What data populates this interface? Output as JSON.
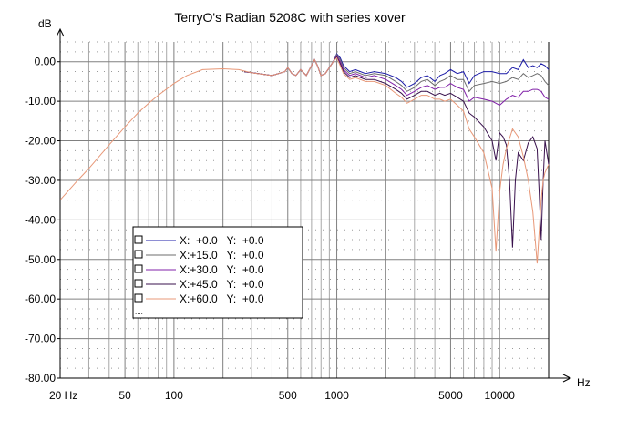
{
  "chart_data": {
    "type": "line",
    "title": "TerryO's Radian 5208C with series xover",
    "ylabel": "dB",
    "xlabel": "Hz",
    "x_scale": "log",
    "xlim": [
      20,
      20000
    ],
    "ylim": [
      -80,
      5
    ],
    "x_ticks": [
      {
        "value": 20,
        "label": "20 Hz"
      },
      {
        "value": 50,
        "label": "50"
      },
      {
        "value": 100,
        "label": "100"
      },
      {
        "value": 500,
        "label": "500"
      },
      {
        "value": 1000,
        "label": "1000"
      },
      {
        "value": 5000,
        "label": "5000"
      },
      {
        "value": 10000,
        "label": "10000"
      }
    ],
    "y_ticks": [
      {
        "value": 0,
        "label": "0.00"
      },
      {
        "value": -10,
        "label": "-10.00"
      },
      {
        "value": -20,
        "label": "-20.00"
      },
      {
        "value": -30,
        "label": "-30.00"
      },
      {
        "value": -40,
        "label": "-40.00"
      },
      {
        "value": -50,
        "label": "-50.00"
      },
      {
        "value": -60,
        "label": "-60.00"
      },
      {
        "value": -70,
        "label": "-70.00"
      },
      {
        "value": -80,
        "label": "-80.00"
      }
    ],
    "grid": true,
    "legend_position": "lower-left",
    "legend_more": "....",
    "series": [
      {
        "name": "X:  +0.0   Y:  +0.0",
        "color": "#1c1ca8",
        "x": [
          270,
          330,
          400,
          480,
          500,
          530,
          560,
          600,
          650,
          700,
          730,
          760,
          800,
          850,
          900,
          950,
          1000,
          1050,
          1100,
          1200,
          1300,
          1500,
          1700,
          2000,
          2300,
          2500,
          2700,
          3000,
          3300,
          3600,
          4000,
          4300,
          4600,
          5000,
          5500,
          6000,
          6500,
          7000,
          8000,
          9000,
          10000,
          11000,
          12000,
          13000,
          14000,
          15000,
          16000,
          17000,
          18000,
          19000,
          20000
        ],
        "y": [
          -2.5,
          -3.0,
          -3.5,
          -2.5,
          -1.5,
          -3.0,
          -3.5,
          -2.0,
          -3.5,
          -1.0,
          0.5,
          -1.0,
          -3.5,
          -3.0,
          -1.5,
          0.0,
          2.0,
          1.0,
          -1.0,
          -2.5,
          -2.0,
          -3.0,
          -2.5,
          -3.0,
          -4.0,
          -5.0,
          -6.5,
          -5.5,
          -4.0,
          -3.5,
          -5.0,
          -3.5,
          -3.0,
          -2.0,
          -3.0,
          -2.5,
          -5.5,
          -3.5,
          -2.5,
          -2.5,
          -3.0,
          -3.0,
          -1.5,
          -2.0,
          0.5,
          -1.5,
          -1.0,
          -1.5,
          -0.5,
          -1.0,
          -2.0
        ]
      },
      {
        "name": "X:+15.0   Y:  +0.0",
        "color": "#6c6c6c",
        "x": [
          270,
          330,
          400,
          480,
          500,
          530,
          560,
          600,
          650,
          700,
          730,
          760,
          800,
          850,
          900,
          950,
          1000,
          1050,
          1100,
          1200,
          1300,
          1500,
          1700,
          2000,
          2300,
          2500,
          2700,
          3000,
          3300,
          3600,
          4000,
          4300,
          4600,
          5000,
          5500,
          6000,
          6500,
          7000,
          8000,
          9000,
          10000,
          11000,
          12000,
          13000,
          14000,
          15000,
          16000,
          17000,
          18000,
          19000,
          20000
        ],
        "y": [
          -2.5,
          -3.0,
          -3.5,
          -2.5,
          -1.5,
          -3.0,
          -3.5,
          -2.0,
          -3.5,
          -1.0,
          0.5,
          -1.0,
          -3.5,
          -3.0,
          -1.5,
          0.0,
          1.8,
          0.5,
          -1.5,
          -3.0,
          -2.5,
          -3.5,
          -3.0,
          -3.5,
          -5.0,
          -6.0,
          -7.5,
          -6.5,
          -5.0,
          -4.5,
          -6.0,
          -5.0,
          -4.5,
          -3.5,
          -4.5,
          -4.5,
          -7.5,
          -6.0,
          -5.5,
          -5.0,
          -5.5,
          -5.0,
          -4.0,
          -4.5,
          -3.0,
          -4.0,
          -3.5,
          -3.0,
          -3.5,
          -5.0,
          -6.0
        ]
      },
      {
        "name": "X:+30.0   Y:  +0.0",
        "color": "#8020a8",
        "x": [
          270,
          330,
          400,
          480,
          500,
          530,
          560,
          600,
          650,
          700,
          730,
          760,
          800,
          850,
          900,
          950,
          1000,
          1050,
          1100,
          1200,
          1300,
          1500,
          1700,
          2000,
          2300,
          2500,
          2700,
          3000,
          3300,
          3600,
          4000,
          4300,
          4600,
          5000,
          5500,
          6000,
          6500,
          7000,
          8000,
          9000,
          10000,
          11000,
          12000,
          13000,
          14000,
          15000,
          16000,
          17000,
          18000,
          19000,
          20000
        ],
        "y": [
          -2.5,
          -3.0,
          -3.5,
          -2.5,
          -1.5,
          -3.0,
          -3.5,
          -2.0,
          -3.5,
          -1.0,
          0.5,
          -1.0,
          -3.5,
          -3.0,
          -1.5,
          0.0,
          1.5,
          0.0,
          -2.0,
          -3.5,
          -3.0,
          -4.0,
          -3.5,
          -4.5,
          -6.0,
          -7.0,
          -8.5,
          -7.5,
          -6.5,
          -6.0,
          -7.0,
          -6.5,
          -6.5,
          -5.5,
          -6.5,
          -7.0,
          -10.0,
          -9.0,
          -9.5,
          -10.0,
          -11.0,
          -9.5,
          -8.5,
          -9.0,
          -7.5,
          -7.5,
          -7.0,
          -7.0,
          -7.5,
          -9.0,
          -9.5
        ]
      },
      {
        "name": "X:+45.0   Y:  +0.0",
        "color": "#38104c",
        "x": [
          270,
          330,
          400,
          480,
          500,
          530,
          560,
          600,
          650,
          700,
          730,
          760,
          800,
          850,
          900,
          950,
          1000,
          1050,
          1100,
          1200,
          1300,
          1500,
          1700,
          2000,
          2300,
          2500,
          2700,
          3000,
          3300,
          3600,
          4000,
          4300,
          4600,
          5000,
          5500,
          6000,
          6500,
          7000,
          8000,
          9000,
          9500,
          10000,
          10500,
          11000,
          11500,
          12000,
          12500,
          13000,
          14000,
          15000,
          16000,
          17000,
          17500,
          18000,
          18500,
          19000,
          20000
        ],
        "y": [
          -2.5,
          -3.0,
          -3.5,
          -2.5,
          -1.5,
          -3.0,
          -3.5,
          -2.0,
          -3.5,
          -1.0,
          0.5,
          -1.0,
          -3.5,
          -3.0,
          -1.5,
          0.0,
          1.2,
          -0.5,
          -2.5,
          -4.0,
          -3.5,
          -4.5,
          -4.5,
          -5.5,
          -7.0,
          -8.0,
          -9.5,
          -8.5,
          -7.5,
          -7.5,
          -8.5,
          -8.0,
          -8.5,
          -8.0,
          -9.0,
          -10.0,
          -13.0,
          -14.0,
          -16.5,
          -20.0,
          -25.0,
          -18.0,
          -19.0,
          -21.0,
          -30.0,
          -47.0,
          -30.0,
          -23.0,
          -25.0,
          -20.5,
          -19.0,
          -22.0,
          -33.0,
          -45.0,
          -30.0,
          -20.0,
          -26.0
        ]
      },
      {
        "name": "X:+60.0   Y:  +0.0",
        "color": "#e89878",
        "x": [
          20,
          25,
          30,
          40,
          50,
          60,
          70,
          80,
          100,
          120,
          150,
          200,
          250,
          300,
          400,
          480,
          500,
          530,
          560,
          600,
          650,
          700,
          730,
          760,
          800,
          850,
          900,
          950,
          1000,
          1050,
          1100,
          1200,
          1300,
          1500,
          1700,
          2000,
          2300,
          2500,
          2700,
          3000,
          3300,
          3600,
          4000,
          4300,
          4600,
          5000,
          5500,
          6000,
          6500,
          7000,
          8000,
          9000,
          9500,
          10000,
          10500,
          11000,
          12000,
          13000,
          14000,
          15000,
          16000,
          17000,
          18000,
          18500,
          19000,
          20000
        ],
        "y": [
          -35.0,
          -30.5,
          -27.0,
          -21.0,
          -16.5,
          -13.0,
          -10.5,
          -8.5,
          -5.5,
          -3.5,
          -2.0,
          -1.8,
          -2.0,
          -2.8,
          -3.5,
          -2.5,
          -1.5,
          -3.0,
          -3.5,
          -2.0,
          -3.5,
          -1.0,
          0.5,
          -1.0,
          -3.5,
          -3.0,
          -1.5,
          0.0,
          1.0,
          -1.0,
          -3.0,
          -4.5,
          -4.0,
          -5.0,
          -5.0,
          -6.0,
          -8.0,
          -9.0,
          -10.5,
          -9.5,
          -8.5,
          -8.5,
          -9.5,
          -9.5,
          -10.0,
          -9.5,
          -11.0,
          -12.5,
          -17.0,
          -19.0,
          -23.0,
          -32.0,
          -48.0,
          -33.0,
          -26.0,
          -22.0,
          -17.0,
          -19.0,
          -24.0,
          -30.0,
          -38.0,
          -51.0,
          -35.0,
          -30.0,
          -28.0,
          -26.0
        ]
      }
    ]
  }
}
